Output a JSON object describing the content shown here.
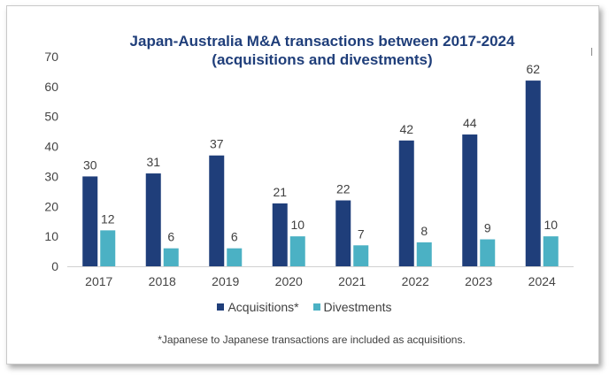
{
  "chart_data": {
    "type": "bar",
    "title": "Japan-Australia M&A transactions between 2017-2024",
    "subtitle": "(acquisitions and divestments)",
    "categories": [
      "2017",
      "2018",
      "2019",
      "2020",
      "2021",
      "2022",
      "2023",
      "2024"
    ],
    "series": [
      {
        "name": "Acquisitions*",
        "values": [
          30,
          31,
          37,
          21,
          22,
          42,
          44,
          62
        ],
        "color": "#1f3e7a"
      },
      {
        "name": "Divestments",
        "values": [
          12,
          6,
          6,
          10,
          7,
          8,
          9,
          10
        ],
        "color": "#4bb1c4"
      }
    ],
    "ylim": [
      0,
      70
    ],
    "yticks": [
      0,
      10,
      20,
      30,
      40,
      50,
      60,
      70
    ],
    "xlabel": "",
    "ylabel": "",
    "grid": false,
    "legend_position": "bottom",
    "data_labels": true,
    "footnote": "*Japanese to Japanese transactions are included as acquisitions."
  }
}
